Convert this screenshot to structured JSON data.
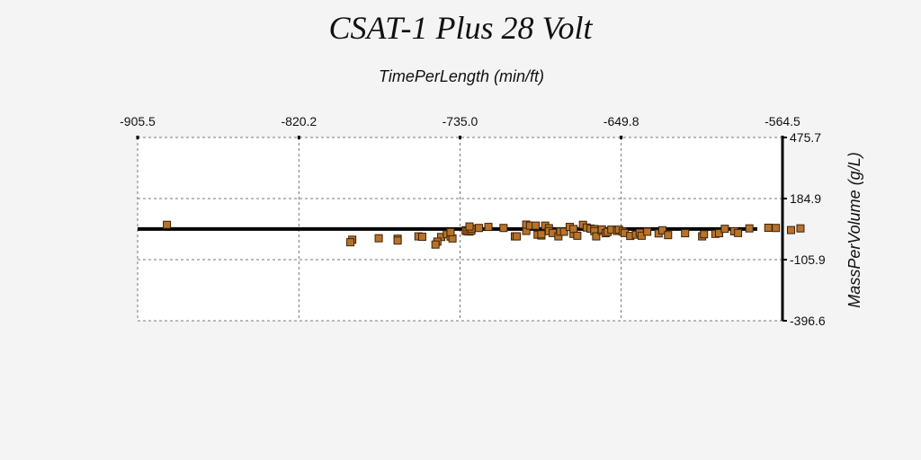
{
  "chart_data": {
    "type": "scatter",
    "title": "CSAT-1 Plus 28 Volt",
    "xlabel": "TimePerLength (min/ft)",
    "ylabel": "MassPerVolume (g/L)",
    "x_axis_position": "top",
    "y_axis_position": "right",
    "xlim": [
      -905.5,
      -564.5
    ],
    "ylim": [
      -396.6,
      475.7
    ],
    "x_ticks": [
      "-905.5",
      "-820.2",
      "-735.0",
      "-649.8",
      "-564.5"
    ],
    "y_ticks": [
      "475.7",
      "184.9",
      "-105.9",
      "-396.6"
    ],
    "x_tick_values": [
      -905.5,
      -820.2,
      -735.0,
      -649.8,
      -564.5
    ],
    "y_tick_values": [
      475.7,
      184.9,
      -105.9,
      -396.6
    ],
    "grid": true,
    "reference_line_y": 40,
    "marker_color": "#b8732a",
    "marker_edge": "#3a2208",
    "points": [
      [
        -890,
        60
      ],
      [
        -792,
        -11
      ],
      [
        -793,
        -23
      ],
      [
        -778,
        -4
      ],
      [
        -768,
        -6
      ],
      [
        -768,
        -15
      ],
      [
        -757,
        5
      ],
      [
        -755,
        3
      ],
      [
        -745,
        2
      ],
      [
        -747,
        -20
      ],
      [
        -748,
        -34
      ],
      [
        -742,
        15
      ],
      [
        -740,
        4
      ],
      [
        -739,
        -5
      ],
      [
        -740,
        25
      ],
      [
        -732,
        34
      ],
      [
        -732,
        31
      ],
      [
        -731,
        29
      ],
      [
        -730,
        28
      ],
      [
        -729,
        32
      ],
      [
        -729,
        42
      ],
      [
        -730,
        52
      ],
      [
        -725,
        45
      ],
      [
        -720,
        50
      ],
      [
        -712,
        45
      ],
      [
        -706,
        5
      ],
      [
        -705,
        5
      ],
      [
        -700,
        31
      ],
      [
        -700,
        61
      ],
      [
        -698,
        56
      ],
      [
        -695,
        56
      ],
      [
        -694,
        13
      ],
      [
        -692,
        9
      ],
      [
        -692,
        15
      ],
      [
        -690,
        56
      ],
      [
        -688,
        44
      ],
      [
        -688,
        30
      ],
      [
        -686,
        21
      ],
      [
        -683,
        5
      ],
      [
        -682,
        28
      ],
      [
        -680,
        27
      ],
      [
        -677,
        50
      ],
      [
        -675,
        17
      ],
      [
        -675,
        40
      ],
      [
        -673,
        8
      ],
      [
        -670,
        60
      ],
      [
        -668,
        47
      ],
      [
        -666,
        42
      ],
      [
        -664,
        40
      ],
      [
        -664,
        30
      ],
      [
        -663,
        5
      ],
      [
        -660,
        31
      ],
      [
        -660,
        38
      ],
      [
        -658,
        20
      ],
      [
        -657,
        26
      ],
      [
        -655,
        37
      ],
      [
        -652,
        31
      ],
      [
        -651,
        37
      ],
      [
        -649,
        28
      ],
      [
        -648,
        21
      ],
      [
        -645,
        7
      ],
      [
        -642,
        13
      ],
      [
        -640,
        22
      ],
      [
        -639,
        8
      ],
      [
        -636,
        27
      ],
      [
        -630,
        19
      ],
      [
        -628,
        34
      ],
      [
        -625,
        11
      ],
      [
        -616,
        20
      ],
      [
        -607,
        5
      ],
      [
        -606,
        15
      ],
      [
        -600,
        17
      ],
      [
        -598,
        20
      ],
      [
        -595,
        41
      ],
      [
        -590,
        29
      ],
      [
        -588,
        21
      ],
      [
        -582,
        43
      ],
      [
        -572,
        46
      ],
      [
        -568,
        45
      ],
      [
        -560,
        35
      ],
      [
        -555,
        43
      ]
    ]
  }
}
